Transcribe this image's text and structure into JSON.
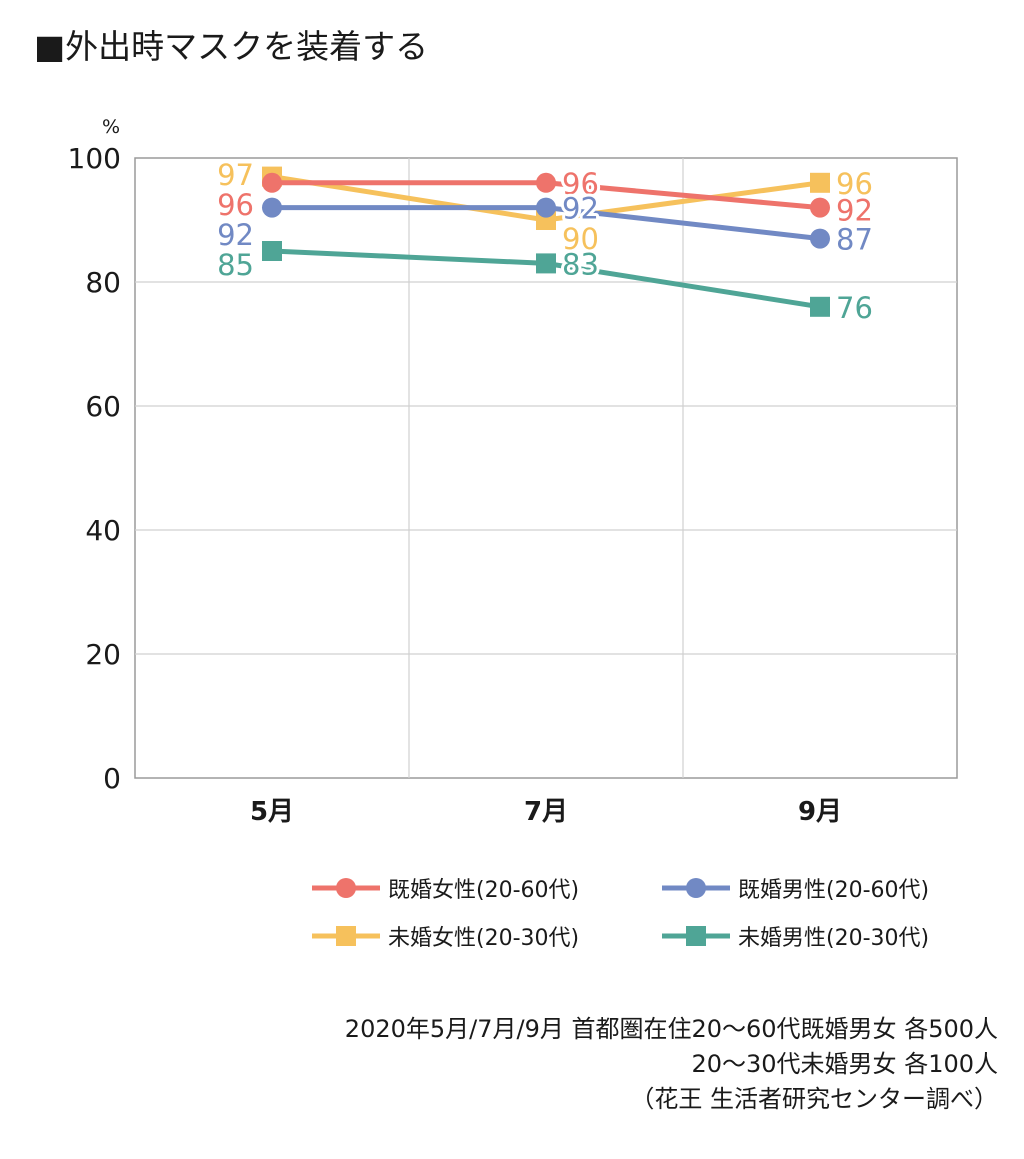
{
  "title": "■外出時マスクを装着する",
  "chart_data": {
    "type": "line",
    "unit": "%",
    "categories": [
      "5月",
      "7月",
      "9月"
    ],
    "ylim": [
      0,
      100
    ],
    "yticks": [
      0,
      20,
      40,
      60,
      80,
      100
    ],
    "grid": true,
    "legend_position": "bottom",
    "series": [
      {
        "name": "既婚女性(20-60代)",
        "color": "#ee736b",
        "marker": "circle",
        "values": [
          96,
          96,
          92
        ]
      },
      {
        "name": "既婚男性(20-60代)",
        "color": "#7189c4",
        "marker": "circle",
        "values": [
          92,
          92,
          87
        ]
      },
      {
        "name": "未婚女性(20-30代)",
        "color": "#f6c15c",
        "marker": "square",
        "values": [
          97,
          90,
          96
        ]
      },
      {
        "name": "未婚男性(20-30代)",
        "color": "#4fa596",
        "marker": "square",
        "values": [
          85,
          83,
          76
        ]
      }
    ]
  },
  "source": {
    "line1": "2020年5月/7月/9月 首都圏在住20～60代既婚男女 各500人",
    "line2": "20～30代未婚男女 各100人",
    "line3": "（花王 生活者研究センター調べ）"
  }
}
